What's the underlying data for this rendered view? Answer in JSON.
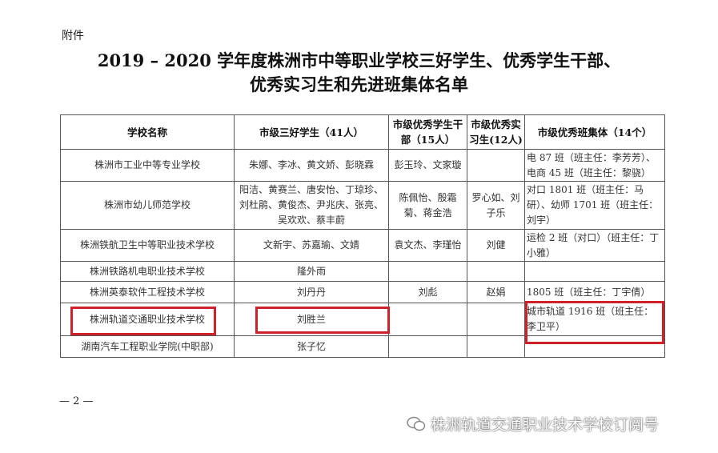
{
  "attachment_label": "附件",
  "title_line1": "2019 – 2020 学年度株洲市中等职业学校三好学生、优秀学生干部、",
  "title_line2": "优秀实习生和先进班集体名单",
  "table": {
    "headers": [
      "学校名称",
      "市级三好学生（41人）",
      "市级优秀学生干部（15人）",
      "市级优秀实习生(12人)",
      "市级优秀班集体（14个）"
    ],
    "rows": [
      [
        "株洲市工业中等专业学校",
        "朱娜、李冰、黄文娇、彭晓霖",
        "彭玉玲、文家璇",
        "",
        "电 87 班（班主任：李芳芳）、电商 45 班（班主任：黎骁）"
      ],
      [
        "株洲市幼儿师范学校",
        "阳洁、黄赛兰、唐安怡、丁琼珍、刘杜鹃、黄俊杰、尹兆庆、张亮、吴欢欢、蔡丰蔚",
        "陈佩怡、殷霜菊、蒋金浩",
        "罗心如、刘子乐",
        "对口 1801 班（班主任：马研）、幼师 1701 班（班主任：刘宇）"
      ],
      [
        "株洲铁航卫生中等职业技术学校",
        "文新宇、苏嘉瑜、文婧",
        "袁文杰、李瑾怡",
        "刘健",
        "运检 2 班（对口）（班主任：丁小雅）"
      ],
      [
        "株洲铁路机电职业技术学校",
        "隆外雨",
        "",
        "",
        ""
      ],
      [
        "株洲英泰软件工程技术学校",
        "刘丹丹",
        "刘彪",
        "赵娟",
        "1805 班（班主任：丁宇倩）"
      ],
      [
        "株洲轨道交通职业技术学校",
        "刘胜兰",
        "",
        "",
        "城市轨道 1916 班（班主任：李卫平）"
      ],
      [
        "湖南汽车工程职业学院(中职部)",
        "张子忆",
        "",
        "",
        ""
      ]
    ]
  },
  "page_number": "— 2 —",
  "watermark": "株洲轨道交通职业技术学校订阅号",
  "highlight_color": "#d0202a"
}
